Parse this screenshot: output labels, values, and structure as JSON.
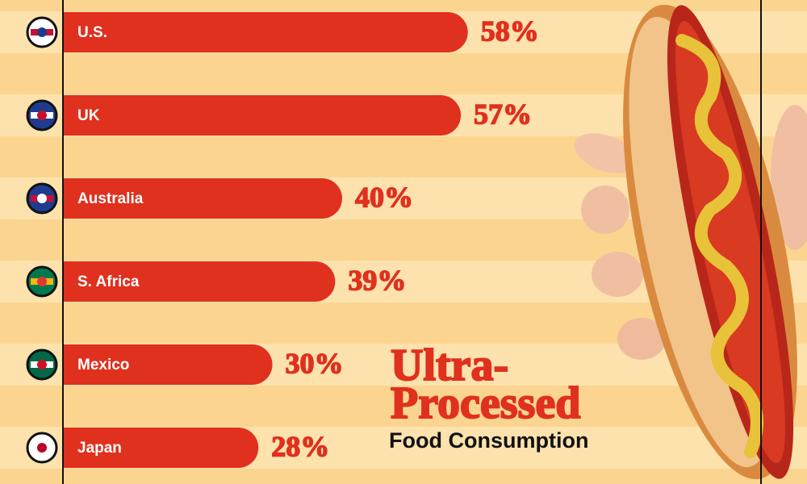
{
  "chart_data": {
    "type": "hbar",
    "title": [
      "Ultra-",
      "Processed"
    ],
    "subtitle": "Food Consumption",
    "categories": [
      "U.S.",
      "UK",
      "Australia",
      "S. Africa",
      "Mexico",
      "Japan"
    ],
    "values": [
      58,
      57,
      40,
      39,
      30,
      28
    ],
    "value_labels": [
      "58%",
      "57%",
      "40%",
      "39%",
      "30%",
      "28%"
    ],
    "color": "#e0301e",
    "xlim": [
      0,
      100
    ]
  }
}
